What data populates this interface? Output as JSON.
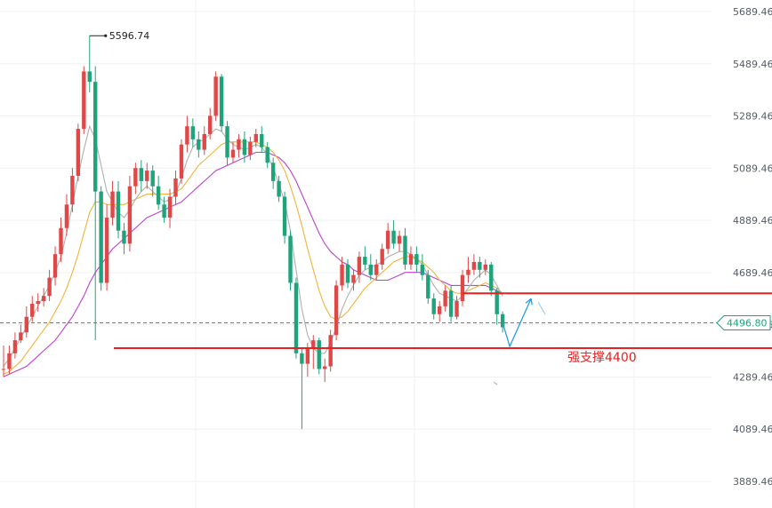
{
  "chart_data": {
    "type": "candlestick",
    "title": "",
    "xlabel": "",
    "ylabel": "",
    "ylim": [
      3840,
      5720
    ],
    "y_ticks": [
      3889.46,
      4089.46,
      4289.46,
      4489.46,
      4689.46,
      4889.46,
      5089.46,
      5289.46,
      5489.46,
      5689.46
    ],
    "y_tick_labels": [
      "3889.46",
      "4089.46",
      "4289.46",
      "4489.46",
      "4689.46",
      "4889.46",
      "5089.46",
      "5289.46",
      "5489.46",
      "5689.46"
    ],
    "grid": true,
    "colors": {
      "up": "#e04848",
      "down": "#1fa37a",
      "ma_fast": "#b0b0b0",
      "ma_mid": "#f0b43a",
      "ma_slow": "#c040d0",
      "support": "#e82020",
      "projection": "#2a9be8",
      "note": "#e82020",
      "price_tag": "#1fa37a"
    },
    "peak_label": "5596.74",
    "peak_value": 5596.74,
    "current_price": 4496.8,
    "current_price_label": "4496.80",
    "support_level": 4400,
    "resistance_level": 4610,
    "annotation": "强支撑4400",
    "candles": [
      [
        4320,
        4320,
        4410,
        4290
      ],
      [
        4320,
        4380,
        4410,
        4300
      ],
      [
        4380,
        4430,
        4460,
        4360
      ],
      [
        4430,
        4460,
        4490,
        4420
      ],
      [
        4460,
        4520,
        4560,
        4440
      ],
      [
        4520,
        4570,
        4600,
        4500
      ],
      [
        4570,
        4580,
        4610,
        4540
      ],
      [
        4580,
        4600,
        4630,
        4560
      ],
      [
        4600,
        4670,
        4700,
        4580
      ],
      [
        4670,
        4760,
        4790,
        4640
      ],
      [
        4760,
        4860,
        4900,
        4730
      ],
      [
        4860,
        4950,
        4990,
        4830
      ],
      [
        4950,
        5060,
        5090,
        4920
      ],
      [
        5060,
        5240,
        5260,
        5040
      ],
      [
        5240,
        5460,
        5480,
        5220
      ],
      [
        5460,
        5420,
        5596.74,
        5380
      ],
      [
        5420,
        5000,
        5480,
        4430
      ],
      [
        5000,
        4650,
        5020,
        4620
      ],
      [
        4650,
        4900,
        4950,
        4620
      ],
      [
        4900,
        5000,
        5040,
        4870
      ],
      [
        5000,
        4850,
        5040,
        4820
      ],
      [
        4850,
        4800,
        4880,
        4760
      ],
      [
        4800,
        5020,
        5060,
        4770
      ],
      [
        5020,
        5090,
        5110,
        4990
      ],
      [
        5090,
        5040,
        5120,
        5000
      ],
      [
        5040,
        5080,
        5110,
        5010
      ],
      [
        5080,
        5020,
        5100,
        4980
      ],
      [
        5020,
        4950,
        5060,
        4930
      ],
      [
        4950,
        4900,
        4980,
        4880
      ],
      [
        4900,
        4980,
        5010,
        4860
      ],
      [
        4980,
        5050,
        5080,
        4950
      ],
      [
        5050,
        5180,
        5200,
        5030
      ],
      [
        5180,
        5250,
        5290,
        5150
      ],
      [
        5250,
        5200,
        5280,
        5170
      ],
      [
        5200,
        5160,
        5230,
        5130
      ],
      [
        5160,
        5220,
        5250,
        5140
      ],
      [
        5220,
        5290,
        5320,
        5200
      ],
      [
        5290,
        5440,
        5460,
        5270
      ],
      [
        5440,
        5250,
        5450,
        5230
      ],
      [
        5250,
        5130,
        5270,
        5100
      ],
      [
        5130,
        5160,
        5190,
        5110
      ],
      [
        5160,
        5200,
        5220,
        5130
      ],
      [
        5200,
        5140,
        5230,
        5110
      ],
      [
        5140,
        5190,
        5210,
        5120
      ],
      [
        5190,
        5220,
        5240,
        5170
      ],
      [
        5220,
        5170,
        5250,
        5150
      ],
      [
        5170,
        5110,
        5190,
        5090
      ],
      [
        5110,
        5040,
        5130,
        5010
      ],
      [
        5040,
        4980,
        5060,
        4960
      ],
      [
        4980,
        4830,
        5000,
        4800
      ],
      [
        4830,
        4650,
        4850,
        4620
      ],
      [
        4650,
        4380,
        4670,
        4360
      ],
      [
        4380,
        4340,
        4400,
        4090
      ],
      [
        4340,
        4400,
        4420,
        4290
      ],
      [
        4400,
        4430,
        4450,
        4320
      ],
      [
        4430,
        4320,
        4440,
        4300
      ],
      [
        4320,
        4330,
        4360,
        4270
      ],
      [
        4330,
        4450,
        4470,
        4310
      ],
      [
        4450,
        4640,
        4660,
        4430
      ],
      [
        4640,
        4720,
        4750,
        4620
      ],
      [
        4720,
        4650,
        4740,
        4630
      ],
      [
        4650,
        4680,
        4700,
        4620
      ],
      [
        4680,
        4750,
        4770,
        4650
      ],
      [
        4750,
        4720,
        4790,
        4700
      ],
      [
        4720,
        4680,
        4760,
        4660
      ],
      [
        4680,
        4720,
        4740,
        4660
      ],
      [
        4720,
        4780,
        4800,
        4700
      ],
      [
        4780,
        4850,
        4880,
        4760
      ],
      [
        4850,
        4800,
        4890,
        4780
      ],
      [
        4800,
        4830,
        4850,
        4770
      ],
      [
        4830,
        4720,
        4860,
        4700
      ],
      [
        4720,
        4760,
        4790,
        4700
      ],
      [
        4760,
        4720,
        4790,
        4690
      ],
      [
        4720,
        4680,
        4760,
        4660
      ],
      [
        4680,
        4590,
        4700,
        4570
      ],
      [
        4590,
        4530,
        4610,
        4510
      ],
      [
        4530,
        4560,
        4580,
        4500
      ],
      [
        4560,
        4620,
        4640,
        4540
      ],
      [
        4620,
        4520,
        4640,
        4500
      ],
      [
        4520,
        4580,
        4600,
        4510
      ],
      [
        4580,
        4680,
        4700,
        4560
      ],
      [
        4680,
        4700,
        4750,
        4650
      ],
      [
        4700,
        4730,
        4760,
        4680
      ],
      [
        4730,
        4700,
        4750,
        4670
      ],
      [
        4700,
        4720,
        4740,
        4680
      ],
      [
        4720,
        4620,
        4730,
        4600
      ],
      [
        4620,
        4530,
        4630,
        4490
      ],
      [
        4530,
        4480,
        4540,
        4460
      ]
    ],
    "ma_fast": [
      4330,
      4360,
      4400,
      4440,
      4480,
      4520,
      4560,
      4600,
      4640,
      4690,
      4750,
      4840,
      4950,
      5060,
      5160,
      5250,
      5200,
      5100,
      5000,
      4960,
      4920,
      4900,
      4930,
      4970,
      5000,
      5020,
      5000,
      4980,
      4960,
      4970,
      4990,
      5050,
      5120,
      5170,
      5190,
      5200,
      5220,
      5240,
      5230,
      5200,
      5180,
      5170,
      5160,
      5170,
      5180,
      5170,
      5140,
      5090,
      5030,
      4960,
      4850,
      4700,
      4550,
      4450,
      4400,
      4380,
      4380,
      4420,
      4480,
      4550,
      4600,
      4640,
      4680,
      4700,
      4710,
      4720,
      4730,
      4750,
      4760,
      4770,
      4770,
      4760,
      4740,
      4720,
      4680,
      4640,
      4610,
      4600,
      4590,
      4580,
      4600,
      4630,
      4660,
      4680,
      4700,
      4680,
      4640,
      4600
    ],
    "ma_mid": [
      4300,
      4310,
      4330,
      4350,
      4380,
      4410,
      4440,
      4470,
      4500,
      4540,
      4580,
      4630,
      4690,
      4760,
      4840,
      4920,
      4960,
      4960,
      4950,
      4950,
      4950,
      4950,
      4960,
      4970,
      4980,
      4990,
      4990,
      4990,
      4990,
      4990,
      5000,
      5010,
      5040,
      5070,
      5100,
      5120,
      5140,
      5160,
      5180,
      5190,
      5190,
      5190,
      5190,
      5190,
      5190,
      5180,
      5170,
      5150,
      5120,
      5080,
      5020,
      4950,
      4870,
      4780,
      4700,
      4620,
      4560,
      4520,
      4510,
      4520,
      4540,
      4570,
      4600,
      4630,
      4650,
      4670,
      4690,
      4710,
      4730,
      4740,
      4750,
      4750,
      4740,
      4730,
      4710,
      4690,
      4660,
      4640,
      4620,
      4610,
      4610,
      4620,
      4630,
      4640,
      4650,
      4640,
      4630,
      4610
    ],
    "ma_slow": [
      4290,
      4300,
      4310,
      4320,
      4330,
      4350,
      4370,
      4390,
      4410,
      4430,
      4460,
      4490,
      4520,
      4560,
      4600,
      4650,
      4690,
      4720,
      4750,
      4780,
      4800,
      4820,
      4840,
      4860,
      4880,
      4900,
      4910,
      4920,
      4930,
      4940,
      4950,
      4960,
      4980,
      5000,
      5020,
      5040,
      5060,
      5080,
      5090,
      5100,
      5110,
      5120,
      5130,
      5140,
      5150,
      5150,
      5150,
      5140,
      5130,
      5110,
      5080,
      5040,
      4990,
      4940,
      4890,
      4840,
      4800,
      4770,
      4750,
      4730,
      4720,
      4700,
      4690,
      4680,
      4670,
      4660,
      4660,
      4660,
      4670,
      4680,
      4690,
      4690,
      4690,
      4690,
      4680,
      4670,
      4660,
      4650,
      4640,
      4640,
      4640,
      4640,
      4640,
      4640,
      4640,
      4630,
      4620,
      4610
    ]
  }
}
